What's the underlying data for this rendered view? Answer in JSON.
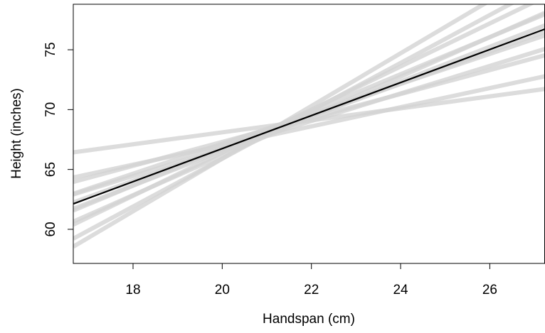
{
  "chart_data": {
    "type": "line",
    "x_label": "Handspan (cm)",
    "y_label": "Height (inches)",
    "x": [
      16.66,
      27.23
    ],
    "series": [
      {
        "color": "#d3d3d3",
        "values": [
          66.43,
          71.72
        ]
      },
      {
        "color": "#d3d3d3",
        "values": [
          64.33,
          72.78
        ]
      },
      {
        "color": "#d3d3d3",
        "values": [
          63.96,
          74.53
        ]
      },
      {
        "color": "#d3d3d3",
        "values": [
          62.91,
          75.06
        ]
      },
      {
        "color": "#d3d3d3",
        "values": [
          62.97,
          76.19
        ]
      },
      {
        "color": "#d3d3d3",
        "values": [
          62.24,
          76.51
        ]
      },
      {
        "color": "#d3d3d3",
        "values": [
          61.71,
          77.03
        ]
      },
      {
        "color": "#d3d3d3",
        "values": [
          61.57,
          77.96
        ]
      },
      {
        "color": "#d3d3d3",
        "values": [
          60.64,
          78.08
        ]
      },
      {
        "color": "#d3d3d3",
        "values": [
          60.39,
          79.41
        ]
      },
      {
        "color": "#d3d3d3",
        "values": [
          59.22,
          80.36
        ]
      },
      {
        "color": "#d3d3d3",
        "values": [
          58.55,
          81.81
        ]
      },
      {
        "color": "#000000",
        "values": [
          62.13,
          76.72
        ]
      }
    ],
    "xlim": [
      16.66,
      27.23
    ],
    "xticks": [
      18,
      20,
      22,
      24,
      26
    ],
    "ylim": [
      57.15,
      78.8
    ],
    "yticks": [
      60,
      65,
      70,
      75
    ],
    "grid": false
  }
}
